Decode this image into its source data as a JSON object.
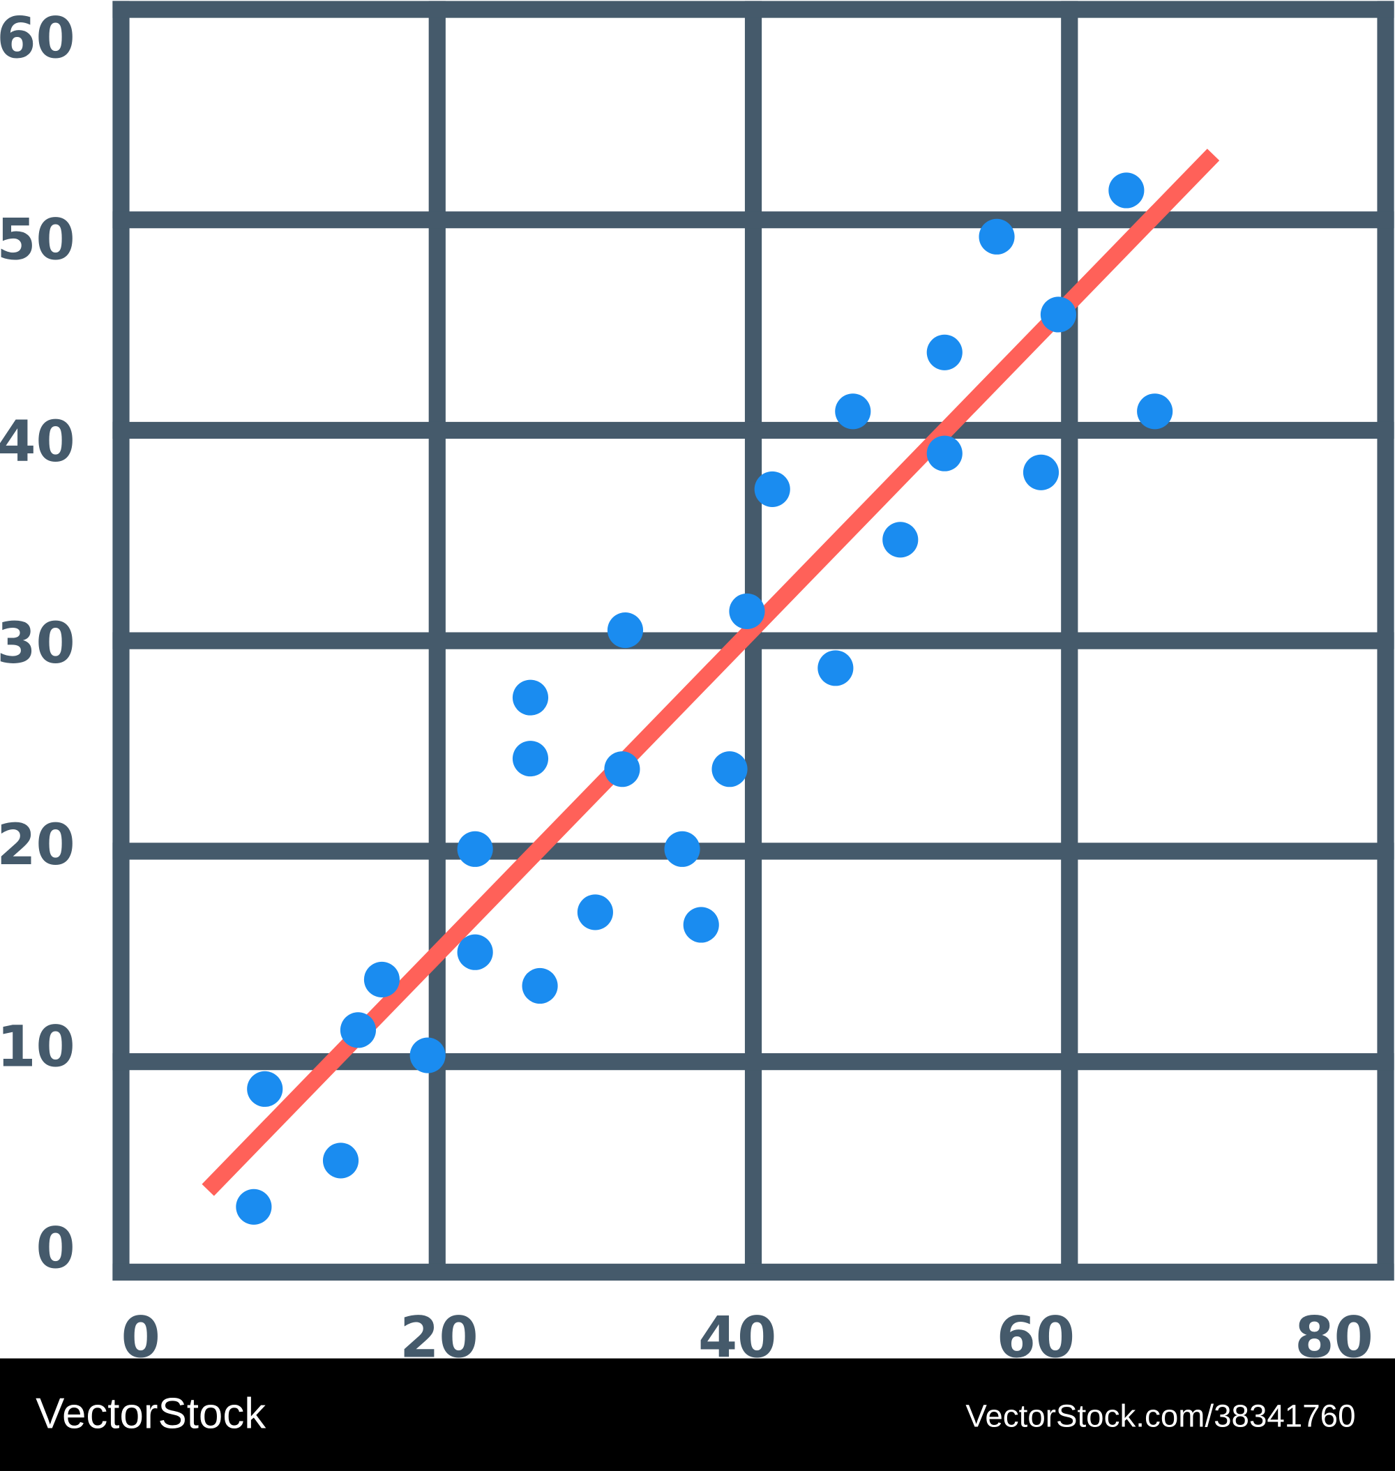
{
  "chart_data": {
    "type": "scatter",
    "x": [
      8.4,
      9.1,
      13.9,
      15.0,
      16.5,
      19.4,
      22.4,
      22.4,
      25.9,
      25.9,
      26.5,
      30.0,
      31.9,
      31.7,
      35.5,
      36.7,
      38.5,
      39.6,
      41.2,
      45.2,
      46.3,
      49.3,
      52.1,
      52.1,
      55.4,
      58.2,
      59.3,
      63.6,
      65.4
    ],
    "values": [
      3.1,
      8.7,
      5.3,
      11.5,
      13.9,
      10.3,
      20.1,
      15.2,
      27.3,
      24.4,
      13.6,
      17.1,
      30.5,
      23.9,
      20.1,
      16.5,
      23.9,
      31.4,
      37.2,
      28.7,
      40.9,
      34.8,
      43.7,
      38.9,
      49.2,
      38.0,
      45.5,
      51.4,
      40.9
    ],
    "color": "#1a8cf0",
    "trend_line": {
      "x": [
        5.5,
        69.1
      ],
      "y": [
        3.9,
        53.1
      ],
      "color": "#ff6159"
    },
    "xlim": [
      0,
      80
    ],
    "ylim": [
      0,
      60
    ],
    "xticks": [
      0,
      20,
      40,
      60,
      80
    ],
    "yticks": [
      0,
      10,
      20,
      30,
      40,
      50,
      60
    ],
    "grid": true,
    "grid_color": "#455a6b"
  },
  "watermark": {
    "brand": "VectorStock",
    "url": "VectorStock.com/38341760"
  }
}
